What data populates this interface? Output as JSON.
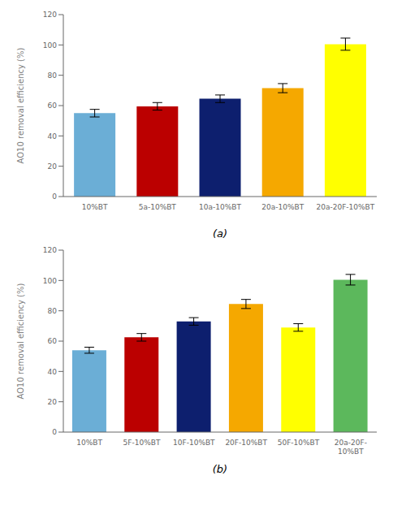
{
  "chart_data": [
    {
      "type": "bar",
      "categories": [
        "10%BT",
        "5a-10%BT",
        "10a-10%BT",
        "20a-10%BT",
        "20a-20F-10%BT"
      ],
      "values": [
        55,
        59.5,
        64.5,
        71.5,
        100.5
      ],
      "errors": [
        2.5,
        2.5,
        2.5,
        3,
        4
      ],
      "colors": [
        "#6baed6",
        "#bb0000",
        "#0d1f6e",
        "#f5a800",
        "#ffff00"
      ],
      "ylabel": "AO10 removal efficiency (%)",
      "xlabel": "(a)",
      "ylim": [
        0,
        120
      ],
      "yticks": [
        0,
        20,
        40,
        60,
        80,
        100,
        120
      ],
      "grid": false
    },
    {
      "type": "bar",
      "categories": [
        "10%BT",
        "5F-10%BT",
        "10F-10%BT",
        "20F-10%BT",
        "50F-10%BT",
        "20a-20F-\n10%BT"
      ],
      "values": [
        54,
        62.5,
        73,
        84.5,
        69,
        100.5
      ],
      "errors": [
        2,
        2.5,
        2.5,
        3,
        2.5,
        3.5
      ],
      "colors": [
        "#6baed6",
        "#bb0000",
        "#0d1f6e",
        "#f5a800",
        "#ffff00",
        "#5cb85c"
      ],
      "ylabel": "AO10 removal efficiency (%)",
      "xlabel": "(b)",
      "ylim": [
        0,
        120
      ],
      "yticks": [
        0,
        20,
        40,
        60,
        80,
        100,
        120
      ],
      "grid": false
    }
  ]
}
